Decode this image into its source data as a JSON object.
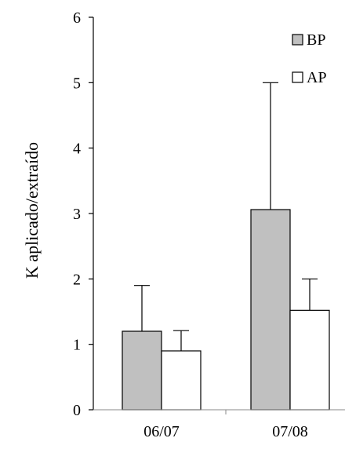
{
  "chart_data": {
    "type": "bar",
    "title": "",
    "xlabel": "",
    "ylabel": "K aplicado/extraído",
    "ylim": [
      0,
      6
    ],
    "yticks": [
      0,
      1,
      2,
      3,
      4,
      5,
      6
    ],
    "categories": [
      "06/07",
      "07/08"
    ],
    "series": [
      {
        "name": "BP",
        "values": [
          1.2,
          3.06
        ],
        "error": [
          0.7,
          1.94
        ],
        "color": "#c0c0c0"
      },
      {
        "name": "AP",
        "values": [
          0.9,
          1.52
        ],
        "error": [
          0.31,
          0.48
        ],
        "color": "#ffffff"
      }
    ],
    "grid": false,
    "legend": "top-right"
  }
}
